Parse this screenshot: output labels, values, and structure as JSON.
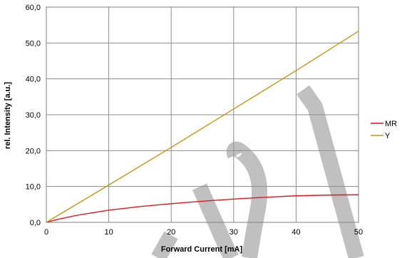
{
  "chart_data": {
    "type": "line",
    "title": "",
    "xlabel": "Forward Current [mA]",
    "ylabel": "rel. Intensity [a.u.]",
    "xlim": [
      0,
      50
    ],
    "ylim": [
      0,
      60
    ],
    "x_ticks": [
      0,
      10,
      20,
      30,
      40,
      50
    ],
    "x_tick_labels": [
      "0",
      "10",
      "20",
      "30",
      "40",
      "50"
    ],
    "y_ticks": [
      0,
      10,
      20,
      30,
      40,
      50,
      60
    ],
    "y_tick_labels": [
      "0,0",
      "10,0",
      "20,0",
      "30,0",
      "40,0",
      "50,0",
      "60,0"
    ],
    "grid": true,
    "legend_position": "right",
    "series": [
      {
        "name": "MR",
        "color": "#e8141c",
        "x": [
          0,
          2,
          5,
          10,
          15,
          20,
          25,
          30,
          35,
          40,
          45,
          50
        ],
        "y": [
          0,
          0.9,
          2.0,
          3.4,
          4.4,
          5.2,
          5.9,
          6.5,
          7.0,
          7.4,
          7.6,
          7.7
        ]
      },
      {
        "name": "Y",
        "color": "#c8960a",
        "x": [
          0,
          10,
          20,
          30,
          40,
          50
        ],
        "y": [
          0,
          10.4,
          20.9,
          31.6,
          42.3,
          53.3
        ]
      }
    ],
    "watermark": {
      "color": "#c0c0c0"
    }
  }
}
